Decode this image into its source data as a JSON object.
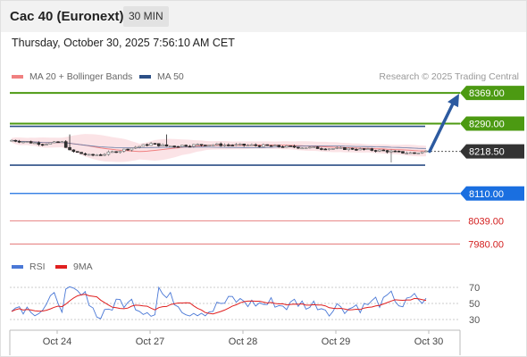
{
  "header": {
    "title": "Cac 40 (Euronext)",
    "interval": "30 MIN"
  },
  "timestamp": "Thursday, October 30, 2025 7:56:10 AM CET",
  "legend": [
    {
      "label": "MA 20 + Bollinger Bands",
      "color": "#f08080"
    },
    {
      "label": "MA 50",
      "color": "#2c4f86"
    }
  ],
  "credit": "Research © 2025 Trading Central",
  "rsi_legend": [
    {
      "label": "RSI",
      "color": "#4a78d6"
    },
    {
      "label": "9MA",
      "color": "#e02020"
    }
  ],
  "chart_data": [
    {
      "type": "candlestick",
      "x_ticks": [
        "Oct 24",
        "Oct 27",
        "Oct 28",
        "Oct 29",
        "Oct 30"
      ],
      "current_price": {
        "label": "8218.50",
        "value": 8218.5
      },
      "price_levels": [
        {
          "label": "8369.00",
          "value": 8369.0,
          "kind": "resistance",
          "color": "#4c9a12"
        },
        {
          "label": "8290.00",
          "value": 8290.0,
          "kind": "resistance",
          "color": "#4c9a12"
        },
        {
          "label": "8110.00",
          "value": 8110.0,
          "kind": "pivot",
          "color": "#1a6fe0"
        },
        {
          "label": "8039.00",
          "value": 8039.0,
          "kind": "support",
          "color": "#d32020"
        },
        {
          "label": "7980.00",
          "value": 7980.0,
          "kind": "support",
          "color": "#d32020"
        }
      ],
      "trend_arrow": {
        "from": 8218.5,
        "to": 8369.0,
        "direction": "up",
        "color": "#2c5aa0"
      },
      "ylim": [
        7960,
        8390
      ]
    },
    {
      "type": "line",
      "title": "RSI",
      "y_ticks": [
        "70",
        "50",
        "30"
      ],
      "ylim": [
        20,
        80
      ],
      "series": [
        {
          "name": "RSI"
        },
        {
          "name": "9MA"
        }
      ]
    }
  ]
}
